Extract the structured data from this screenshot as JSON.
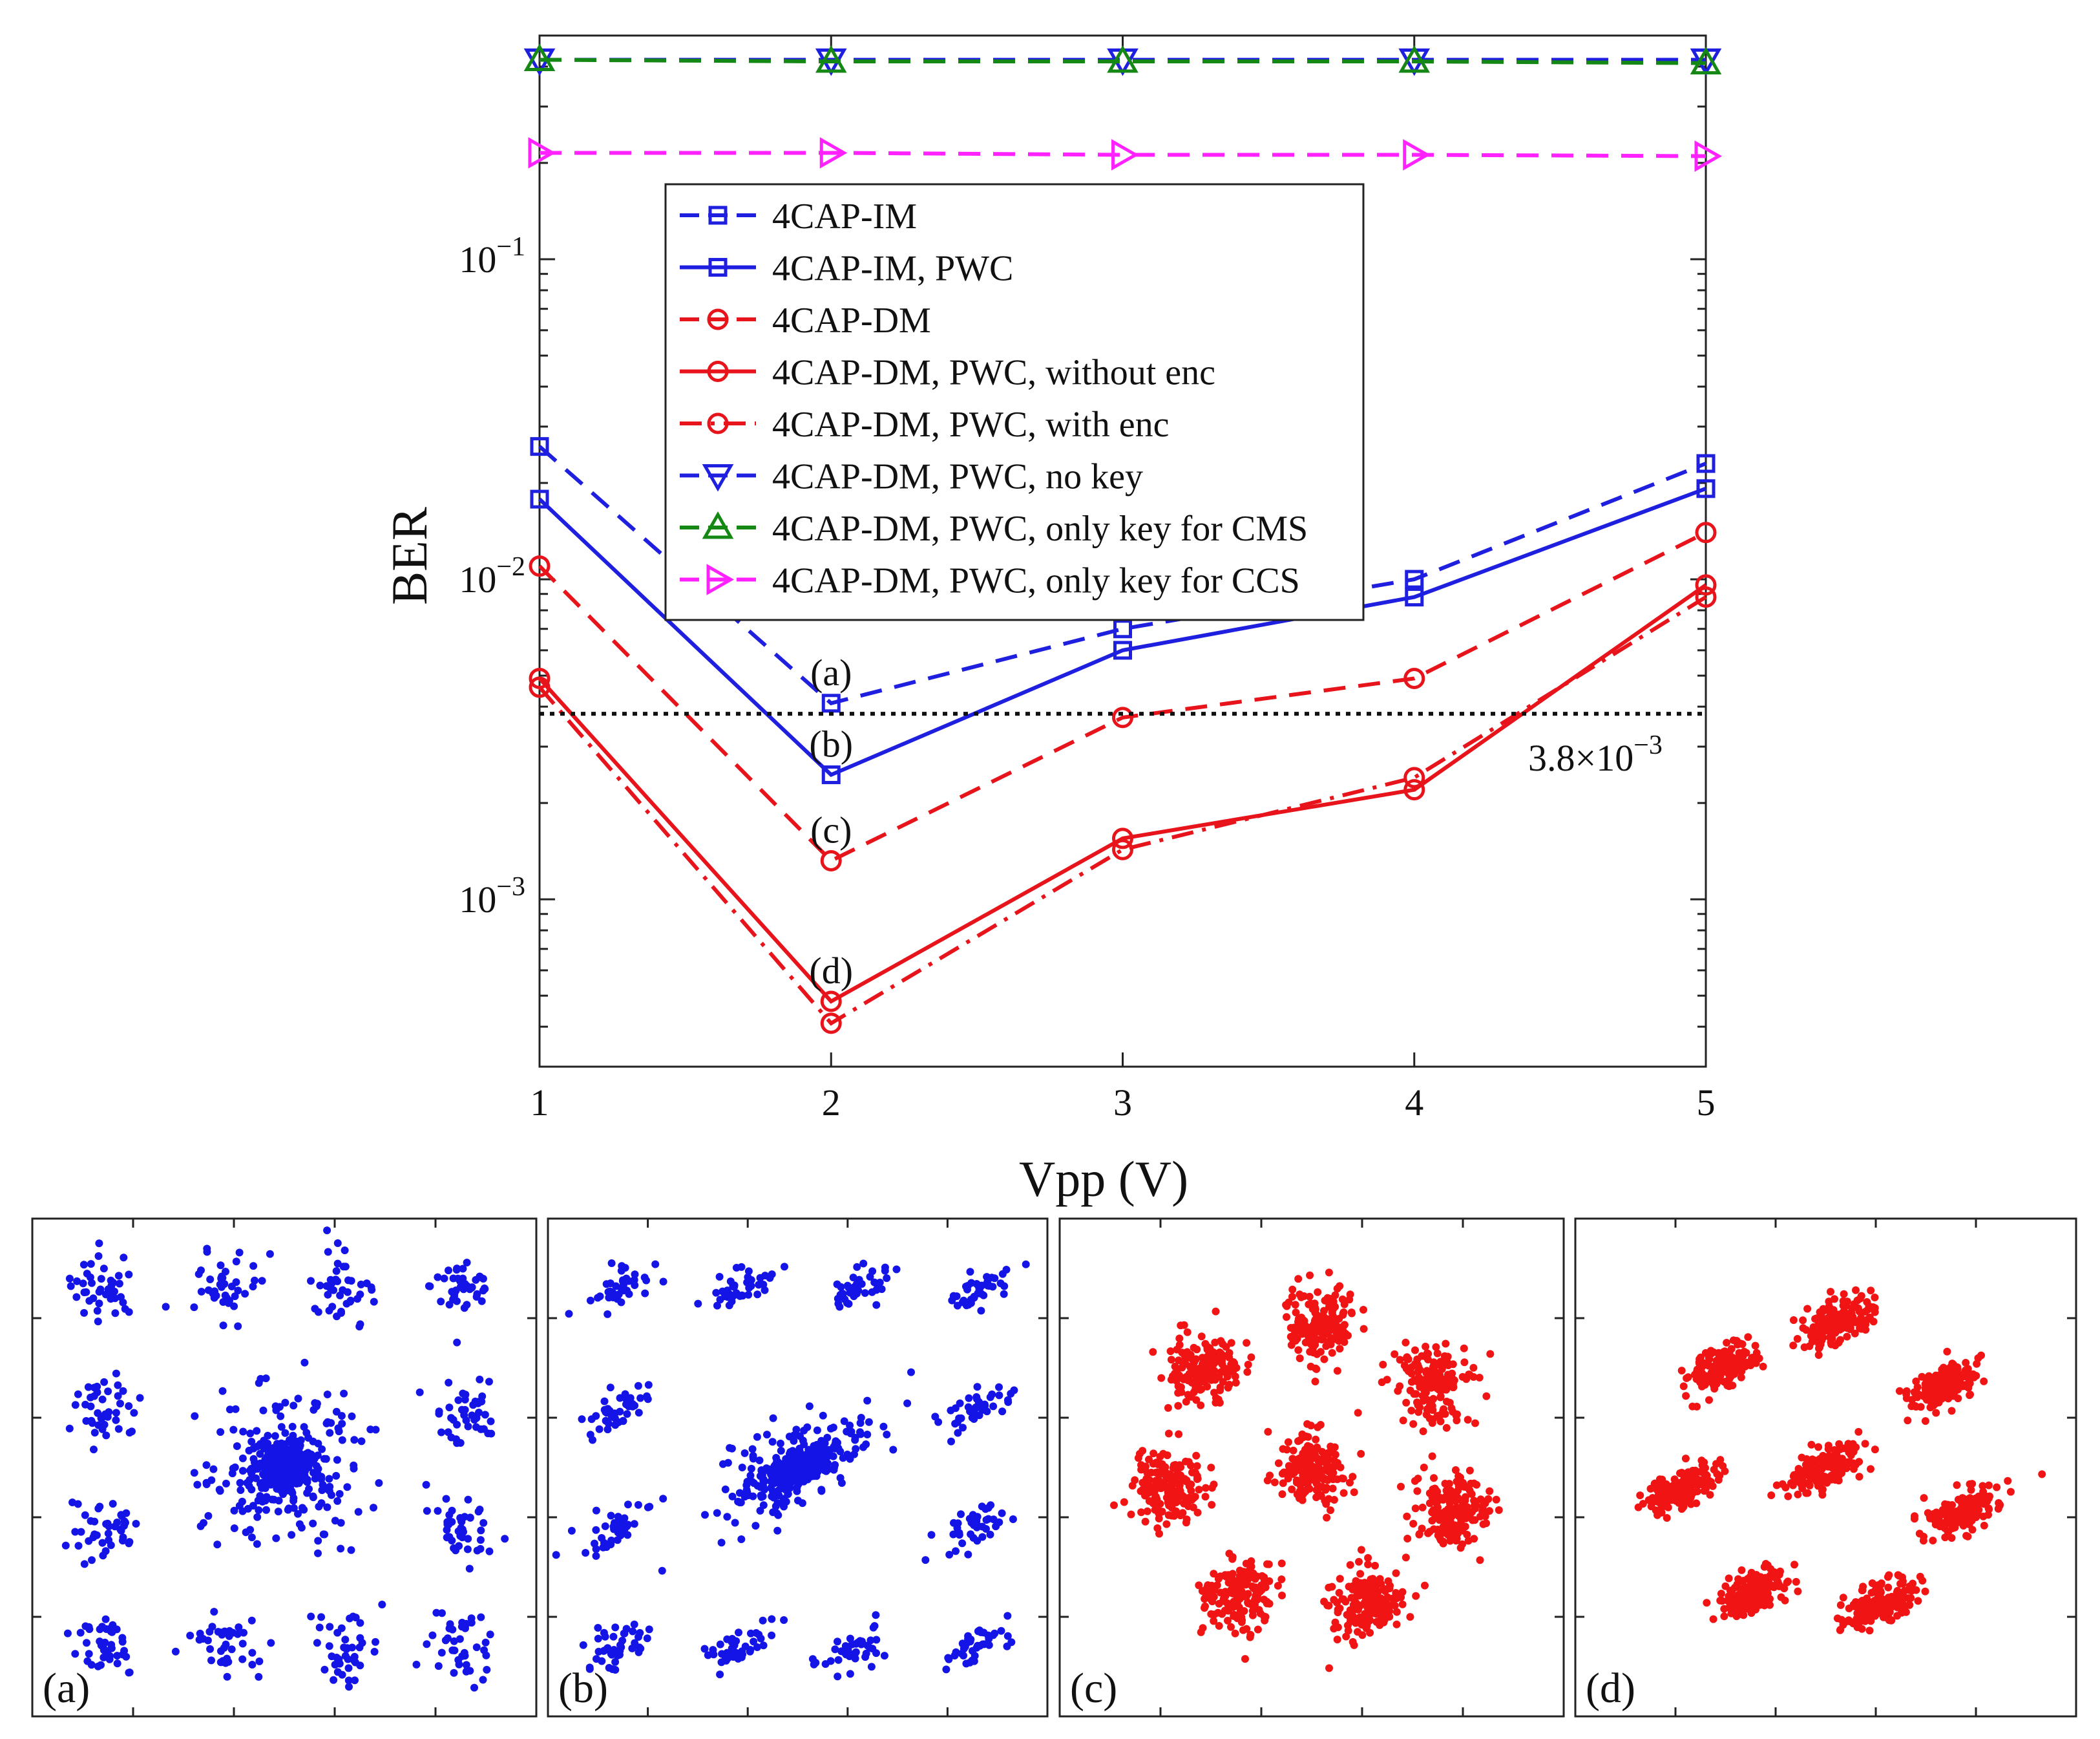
{
  "chart_data": {
    "type": "line",
    "xlabel": "Vpp (V)",
    "ylabel": "BER",
    "x": [
      1,
      2,
      3,
      4,
      5
    ],
    "xticks": [
      "1",
      "2",
      "3",
      "4",
      "5"
    ],
    "xlim": [
      1,
      5
    ],
    "yscale": "log",
    "ylim": [
      0.0003,
      0.5
    ],
    "yticks": [
      {
        "value": 0.1,
        "base": "10",
        "exp": "−1"
      },
      {
        "value": 0.01,
        "base": "10",
        "exp": "−2"
      },
      {
        "value": 0.001,
        "base": "10",
        "exp": "−3"
      }
    ],
    "legend_position": "upper-middle",
    "series": [
      {
        "name": "4CAP-IM",
        "color": "#1f1fe0",
        "dash": "dashed",
        "marker": "square",
        "values": [
          0.026,
          0.0041,
          0.007,
          0.01,
          0.023
        ]
      },
      {
        "name": "4CAP-IM, PWC",
        "color": "#1f1fe0",
        "dash": "solid",
        "marker": "square",
        "values": [
          0.0178,
          0.00245,
          0.006,
          0.0088,
          0.0192
        ]
      },
      {
        "name": "4CAP-DM",
        "color": "#e8141b",
        "dash": "dashed",
        "marker": "circle",
        "values": [
          0.011,
          0.00132,
          0.0037,
          0.0049,
          0.014
        ]
      },
      {
        "name": "4CAP-DM, PWC, without enc",
        "color": "#e8141b",
        "dash": "solid",
        "marker": "circle",
        "values": [
          0.0049,
          0.00048,
          0.00155,
          0.0022,
          0.0096
        ]
      },
      {
        "name": "4CAP-DM, PWC, with enc",
        "color": "#e8141b",
        "dash": "dashdot",
        "marker": "circle",
        "values": [
          0.0046,
          0.00041,
          0.00143,
          0.0024,
          0.0088
        ]
      },
      {
        "name": "4CAP-DM, PWC, no key",
        "color": "#1f1fe0",
        "dash": "dashed",
        "marker": "triangle-down",
        "values": [
          0.42,
          0.42,
          0.42,
          0.42,
          0.42
        ]
      },
      {
        "name": "4CAP-DM, PWC, only key for CMS",
        "color": "#148714",
        "dash": "dashed",
        "marker": "triangle-up",
        "values": [
          0.42,
          0.415,
          0.415,
          0.415,
          0.41
        ]
      },
      {
        "name": "4CAP-DM, PWC, only key for CCS",
        "color": "#ff22ff",
        "dash": "dashed",
        "marker": "triangle-right",
        "values": [
          0.215,
          0.215,
          0.212,
          0.212,
          0.21
        ]
      }
    ],
    "threshold": {
      "value": 0.0038,
      "label_base": "3.8×10",
      "label_exp": "−3"
    },
    "point_annotations": [
      {
        "label": "(a)",
        "x": 2,
        "y": 0.0041
      },
      {
        "label": "(b)",
        "x": 2,
        "y": 0.00245
      },
      {
        "label": "(c)",
        "x": 2,
        "y": 0.00132
      },
      {
        "label": "(d)",
        "x": 2,
        "y": 0.00048
      }
    ]
  },
  "constellations": [
    {
      "label": "(a)",
      "color": "#1414e6",
      "layout": "grid16",
      "dense_center": true,
      "skew": 0
    },
    {
      "label": "(b)",
      "color": "#1414e6",
      "layout": "grid16",
      "dense_center": true,
      "skew": 0.6
    },
    {
      "label": "(c)",
      "color": "#f01414",
      "layout": "ring8",
      "dense_center": false,
      "skew": 0
    },
    {
      "label": "(d)",
      "color": "#f01414",
      "layout": "ring8",
      "dense_center": false,
      "skew": 0.5
    }
  ]
}
